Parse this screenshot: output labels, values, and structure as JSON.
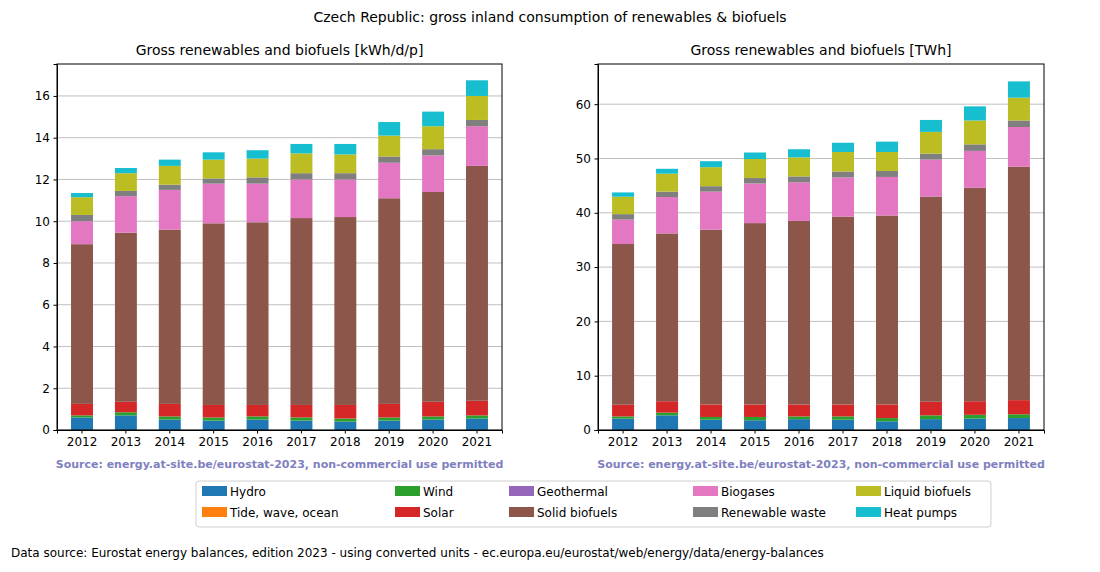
{
  "title": "Czech Republic: gross inland consumption of renewables & biofuels",
  "note": "Data source: Eurostat energy balances, edition 2023 - using converted units - ec.europa.eu/eurostat/web/energy/data/energy-balances",
  "chart_data": [
    {
      "type": "bar",
      "stacked": true,
      "grid": true,
      "legend": "bottom",
      "title": "Gross renewables and biofuels [kWh/d/p]",
      "source": "Source: energy.at-site.be/eurostat-2023, non-commercial use permitted",
      "categories": [
        "2012",
        "2013",
        "2014",
        "2015",
        "2016",
        "2017",
        "2018",
        "2019",
        "2020",
        "2021"
      ],
      "ylim": [
        0,
        17.53
      ],
      "yticks": [
        0,
        2,
        4,
        6,
        8,
        10,
        12,
        14,
        16
      ],
      "series": [
        {
          "name": "Hydro",
          "color": "#1f77b4",
          "values": [
            0.6,
            0.7,
            0.5,
            0.45,
            0.5,
            0.45,
            0.4,
            0.45,
            0.5,
            0.55
          ]
        },
        {
          "name": "Tide, wave, ocean",
          "color": "#ff7f0e",
          "values": [
            0,
            0,
            0,
            0,
            0,
            0,
            0,
            0,
            0,
            0
          ]
        },
        {
          "name": "Wind",
          "color": "#2ca02c",
          "values": [
            0.1,
            0.15,
            0.15,
            0.15,
            0.15,
            0.15,
            0.15,
            0.15,
            0.15,
            0.15
          ]
        },
        {
          "name": "Solar",
          "color": "#d62728",
          "values": [
            0.55,
            0.5,
            0.6,
            0.6,
            0.55,
            0.6,
            0.65,
            0.65,
            0.7,
            0.7
          ]
        },
        {
          "name": "Geothermal",
          "color": "#9467bd",
          "values": [
            0,
            0,
            0,
            0,
            0,
            0,
            0,
            0,
            0,
            0
          ]
        },
        {
          "name": "Solid biofuels",
          "color": "#8c564b",
          "values": [
            7.65,
            8.1,
            8.35,
            8.7,
            8.75,
            8.95,
            9.0,
            9.85,
            10.05,
            11.25
          ]
        },
        {
          "name": "Biogases",
          "color": "#e377c2",
          "values": [
            1.1,
            1.75,
            1.9,
            1.9,
            1.85,
            1.85,
            1.8,
            1.7,
            1.75,
            1.9
          ]
        },
        {
          "name": "Renewable waste",
          "color": "#7f7f7f",
          "values": [
            0.3,
            0.25,
            0.25,
            0.25,
            0.3,
            0.3,
            0.3,
            0.3,
            0.3,
            0.3
          ]
        },
        {
          "name": "Liquid biofuels",
          "color": "#bcbd22",
          "values": [
            0.85,
            0.85,
            0.9,
            0.9,
            0.9,
            0.95,
            0.9,
            1.0,
            1.1,
            1.15
          ]
        },
        {
          "name": "Heat pumps",
          "color": "#17becf",
          "values": [
            0.2,
            0.25,
            0.3,
            0.35,
            0.4,
            0.45,
            0.5,
            0.65,
            0.7,
            0.75
          ]
        }
      ]
    },
    {
      "type": "bar",
      "stacked": true,
      "grid": true,
      "title": "Gross renewables and biofuels [TWh]",
      "source": "Source: energy.at-site.be/eurostat-2023, non-commercial use permitted",
      "categories": [
        "2012",
        "2013",
        "2014",
        "2015",
        "2016",
        "2017",
        "2018",
        "2019",
        "2020",
        "2021"
      ],
      "ylim": [
        0,
        67.4
      ],
      "yticks": [
        0,
        10,
        20,
        30,
        40,
        50,
        60
      ],
      "series": [
        {
          "name": "Hydro",
          "color": "#1f77b4",
          "values": [
            2.1,
            2.7,
            1.9,
            1.8,
            2.0,
            1.9,
            1.6,
            2.0,
            2.1,
            2.2
          ]
        },
        {
          "name": "Tide, wave, ocean",
          "color": "#ff7f0e",
          "values": [
            0,
            0,
            0,
            0,
            0,
            0,
            0,
            0,
            0,
            0
          ]
        },
        {
          "name": "Wind",
          "color": "#2ca02c",
          "values": [
            0.4,
            0.5,
            0.5,
            0.6,
            0.5,
            0.6,
            0.6,
            0.7,
            0.7,
            0.7
          ]
        },
        {
          "name": "Solar",
          "color": "#d62728",
          "values": [
            2.15,
            2.1,
            2.3,
            2.3,
            2.2,
            2.2,
            2.5,
            2.5,
            2.5,
            2.6
          ]
        },
        {
          "name": "Geothermal",
          "color": "#9467bd",
          "values": [
            0,
            0,
            0,
            0,
            0,
            0,
            0,
            0,
            0,
            0
          ]
        },
        {
          "name": "Solid biofuels",
          "color": "#8c564b",
          "values": [
            29.6,
            30.9,
            32.2,
            33.4,
            33.8,
            34.6,
            34.8,
            37.8,
            39.3,
            43.0
          ]
        },
        {
          "name": "Biogases",
          "color": "#e377c2",
          "values": [
            4.5,
            6.7,
            7.0,
            7.3,
            7.1,
            7.2,
            7.1,
            6.8,
            6.8,
            7.3
          ]
        },
        {
          "name": "Renewable waste",
          "color": "#7f7f7f",
          "values": [
            1.0,
            1.0,
            1.0,
            1.0,
            1.1,
            1.1,
            1.1,
            1.1,
            1.2,
            1.2
          ]
        },
        {
          "name": "Liquid biofuels",
          "color": "#bcbd22",
          "values": [
            3.2,
            3.3,
            3.5,
            3.5,
            3.5,
            3.6,
            3.5,
            4.0,
            4.4,
            4.2
          ]
        },
        {
          "name": "Heat pumps",
          "color": "#17becf",
          "values": [
            0.8,
            0.9,
            1.1,
            1.2,
            1.5,
            1.7,
            1.9,
            2.2,
            2.6,
            3.0
          ]
        }
      ]
    }
  ]
}
